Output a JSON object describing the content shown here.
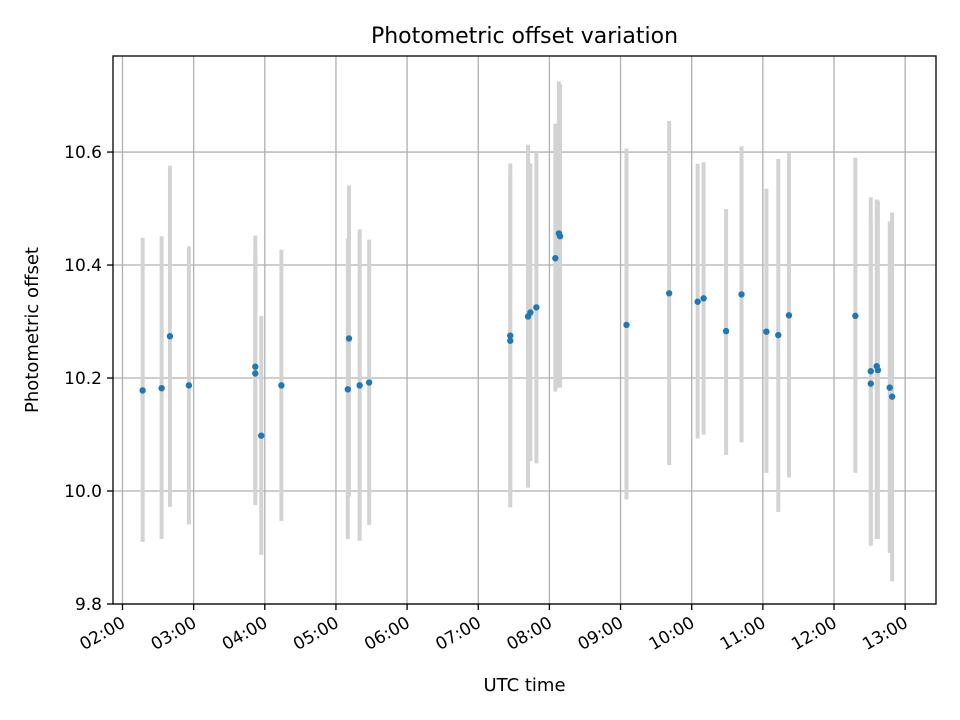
{
  "chart_data": {
    "type": "scatter",
    "title": "Photometric offset variation",
    "xlabel": "UTC time",
    "ylabel": "Photometric offset",
    "xlim": [
      "01:52",
      "13:26"
    ],
    "ylim": [
      9.8,
      10.77
    ],
    "grid": true,
    "x_ticks": [
      "02:00",
      "03:00",
      "04:00",
      "05:00",
      "06:00",
      "07:00",
      "08:00",
      "09:00",
      "10:00",
      "11:00",
      "12:00",
      "13:00"
    ],
    "y_ticks": [
      "9.8",
      "10.0",
      "10.2",
      "10.4",
      "10.6"
    ],
    "colors": {
      "point": "#1f77b4",
      "errorbar": "#d3d3d3",
      "grid": "#b0b0b0"
    },
    "points": [
      {
        "x": "02:17",
        "y": 10.178,
        "ylow": 9.91,
        "yhigh": 10.448
      },
      {
        "x": "02:33",
        "y": 10.182,
        "ylow": 9.915,
        "yhigh": 10.451
      },
      {
        "x": "02:40",
        "y": 10.274,
        "ylow": 9.972,
        "yhigh": 10.576
      },
      {
        "x": "02:56",
        "y": 10.187,
        "ylow": 9.941,
        "yhigh": 10.433
      },
      {
        "x": "03:52",
        "y": 10.22,
        "ylow": 9.975,
        "yhigh": 10.452
      },
      {
        "x": "03:52",
        "y": 10.208,
        "ylow": 9.99,
        "yhigh": 10.42
      },
      {
        "x": "03:57",
        "y": 10.098,
        "ylow": 9.887,
        "yhigh": 10.31
      },
      {
        "x": "04:14",
        "y": 10.187,
        "ylow": 9.947,
        "yhigh": 10.427
      },
      {
        "x": "05:10",
        "y": 10.18,
        "ylow": 9.915,
        "yhigh": 10.447
      },
      {
        "x": "05:11",
        "y": 10.27,
        "ylow": 9.99,
        "yhigh": 10.541
      },
      {
        "x": "05:20",
        "y": 10.187,
        "ylow": 9.912,
        "yhigh": 10.463
      },
      {
        "x": "05:28",
        "y": 10.192,
        "ylow": 9.94,
        "yhigh": 10.445
      },
      {
        "x": "07:27",
        "y": 10.275,
        "ylow": 9.971,
        "yhigh": 10.58
      },
      {
        "x": "07:27",
        "y": 10.266,
        "ylow": 9.99,
        "yhigh": 10.56
      },
      {
        "x": "07:42",
        "y": 10.309,
        "ylow": 10.006,
        "yhigh": 10.613
      },
      {
        "x": "07:44",
        "y": 10.316,
        "ylow": 10.053,
        "yhigh": 10.58
      },
      {
        "x": "07:49",
        "y": 10.325,
        "ylow": 10.049,
        "yhigh": 10.6
      },
      {
        "x": "08:05",
        "y": 10.412,
        "ylow": 10.176,
        "yhigh": 10.65
      },
      {
        "x": "08:08",
        "y": 10.456,
        "ylow": 10.183,
        "yhigh": 10.725
      },
      {
        "x": "08:09",
        "y": 10.451,
        "ylow": 10.183,
        "yhigh": 10.72
      },
      {
        "x": "09:05",
        "y": 10.294,
        "ylow": 9.985,
        "yhigh": 10.606
      },
      {
        "x": "09:41",
        "y": 10.35,
        "ylow": 10.046,
        "yhigh": 10.655
      },
      {
        "x": "10:05",
        "y": 10.335,
        "ylow": 10.093,
        "yhigh": 10.579
      },
      {
        "x": "10:10",
        "y": 10.341,
        "ylow": 10.1,
        "yhigh": 10.582
      },
      {
        "x": "10:29",
        "y": 10.283,
        "ylow": 10.064,
        "yhigh": 10.499
      },
      {
        "x": "10:42",
        "y": 10.348,
        "ylow": 10.086,
        "yhigh": 10.61
      },
      {
        "x": "11:03",
        "y": 10.282,
        "ylow": 10.032,
        "yhigh": 10.535
      },
      {
        "x": "11:13",
        "y": 10.276,
        "ylow": 9.963,
        "yhigh": 10.588
      },
      {
        "x": "11:22",
        "y": 10.311,
        "ylow": 10.024,
        "yhigh": 10.598
      },
      {
        "x": "12:18",
        "y": 10.31,
        "ylow": 10.032,
        "yhigh": 10.59
      },
      {
        "x": "12:31",
        "y": 10.212,
        "ylow": 9.903,
        "yhigh": 10.52
      },
      {
        "x": "12:31",
        "y": 10.19,
        "ylow": 9.905,
        "yhigh": 10.48
      },
      {
        "x": "12:36",
        "y": 10.221,
        "ylow": 9.915,
        "yhigh": 10.516
      },
      {
        "x": "12:37",
        "y": 10.214,
        "ylow": 9.915,
        "yhigh": 10.514
      },
      {
        "x": "12:47",
        "y": 10.183,
        "ylow": 9.89,
        "yhigh": 10.477
      },
      {
        "x": "12:49",
        "y": 10.167,
        "ylow": 9.84,
        "yhigh": 10.493
      }
    ]
  }
}
